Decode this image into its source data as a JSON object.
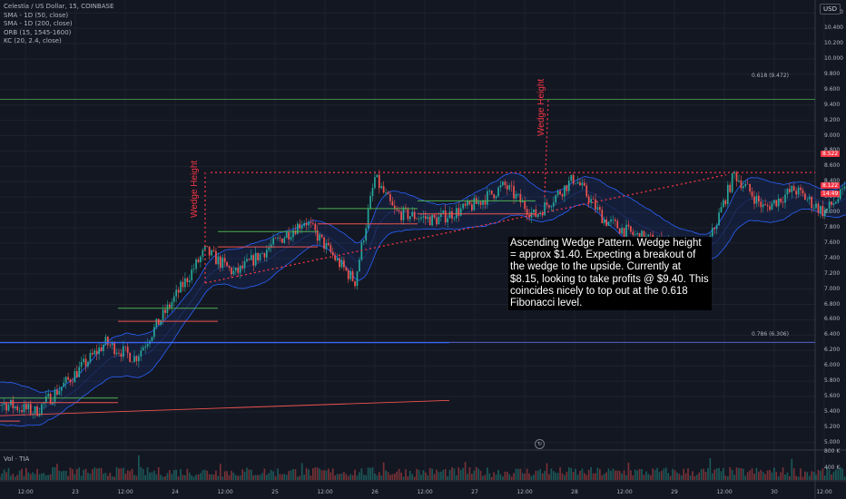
{
  "header": {
    "symbol_line": "Celestia / US Dollar, 15, COINBASE",
    "indicators": [
      "SMA - 1D (50, close)",
      "SMA - 1D (200, close)",
      "ORB (15, 1545-1600)",
      "KC (20, 2.4, close)"
    ],
    "currency": "USD"
  },
  "annotation": {
    "text": "Ascending Wedge Pattern. Wedge height = approx $1.40. Expecting a breakout of the wedge to the upside. Currently at $8.15, looking to take profits @ $9.40. This coincides nicely to top out at the 0.618 Fibonacci level."
  },
  "drawings": {
    "wedge_label_left": "Wedge Height",
    "wedge_label_right": "Wedge Height",
    "fib_618": "0.618 (9.472)",
    "fib_786": "0.786 (6.306)",
    "replay_icon": "replay-icon"
  },
  "volume": {
    "label": "Vol · TIA",
    "axis_labels": [
      "800 K",
      "400 K"
    ]
  },
  "price_axis": {
    "ticks": [
      "10.600",
      "10.400",
      "10.200",
      "10.000",
      "9.800",
      "9.600",
      "9.400",
      "9.200",
      "9.000",
      "8.800",
      "8.600",
      "8.400",
      "8.200",
      "8.000",
      "7.800",
      "7.600",
      "7.400",
      "7.200",
      "7.000",
      "6.800",
      "6.600",
      "6.400",
      "6.200",
      "6.000",
      "5.800",
      "5.600",
      "5.400",
      "5.200",
      "5.000"
    ],
    "tags": [
      {
        "text": "8.522",
        "color": "#f23645"
      },
      {
        "text": "8.122",
        "color": "#f23645"
      },
      {
        "text": "14:49",
        "color": "#f23645"
      }
    ]
  },
  "time_axis": {
    "ticks": [
      "12:00",
      "23",
      "12:00",
      "24",
      "12:00",
      "25",
      "12:00",
      "26",
      "12:00",
      "27",
      "12:00",
      "28",
      "12:00",
      "29",
      "12:00",
      "30",
      "12:00"
    ]
  },
  "colors": {
    "background": "#131722",
    "up_candle": "#26a69a",
    "down_candle": "#ef5350",
    "keltner": "#2962ff",
    "fib_green": "#4caf50",
    "fib_blue": "#5b6ee1",
    "drawing_red": "#f23645"
  },
  "chart_data": {
    "type": "candlestick",
    "symbol": "Celestia / US Dollar",
    "interval": "15",
    "ylim": [
      4.95,
      10.65
    ],
    "fib_levels": [
      {
        "ratio": 0.618,
        "price": 9.472
      },
      {
        "ratio": 0.786,
        "price": 6.306
      }
    ],
    "price_path": [
      {
        "t": 0,
        "p": 5.55
      },
      {
        "t": 0.3,
        "p": 5.5
      },
      {
        "t": 0.6,
        "p": 5.4
      },
      {
        "t": 1.0,
        "p": 5.9
      },
      {
        "t": 1.3,
        "p": 6.3
      },
      {
        "t": 1.6,
        "p": 6.1
      },
      {
        "t": 2.0,
        "p": 6.9
      },
      {
        "t": 2.3,
        "p": 7.5
      },
      {
        "t": 2.6,
        "p": 7.2
      },
      {
        "t": 3.0,
        "p": 7.6
      },
      {
        "t": 3.3,
        "p": 7.9
      },
      {
        "t": 3.6,
        "p": 7.4
      },
      {
        "t": 3.8,
        "p": 7.1
      },
      {
        "t": 4.0,
        "p": 8.45
      },
      {
        "t": 4.2,
        "p": 8.0
      },
      {
        "t": 4.6,
        "p": 7.9
      },
      {
        "t": 5.0,
        "p": 8.1
      },
      {
        "t": 5.3,
        "p": 8.35
      },
      {
        "t": 5.6,
        "p": 7.95
      },
      {
        "t": 6.0,
        "p": 8.45
      },
      {
        "t": 6.3,
        "p": 7.9
      },
      {
        "t": 6.6,
        "p": 7.7
      },
      {
        "t": 7.0,
        "p": 7.55
      },
      {
        "t": 7.3,
        "p": 7.45
      },
      {
        "t": 7.6,
        "p": 8.5
      },
      {
        "t": 7.9,
        "p": 8.05
      },
      {
        "t": 8.2,
        "p": 8.3
      },
      {
        "t": 8.5,
        "p": 8.0
      },
      {
        "t": 8.8,
        "p": 8.4
      },
      {
        "t": 9.1,
        "p": 8.0
      },
      {
        "t": 9.4,
        "p": 8.3
      },
      {
        "t": 9.7,
        "p": 8.12
      }
    ],
    "projection_target": 9.4,
    "current_price": 8.15,
    "wedge_height": 1.4
  }
}
